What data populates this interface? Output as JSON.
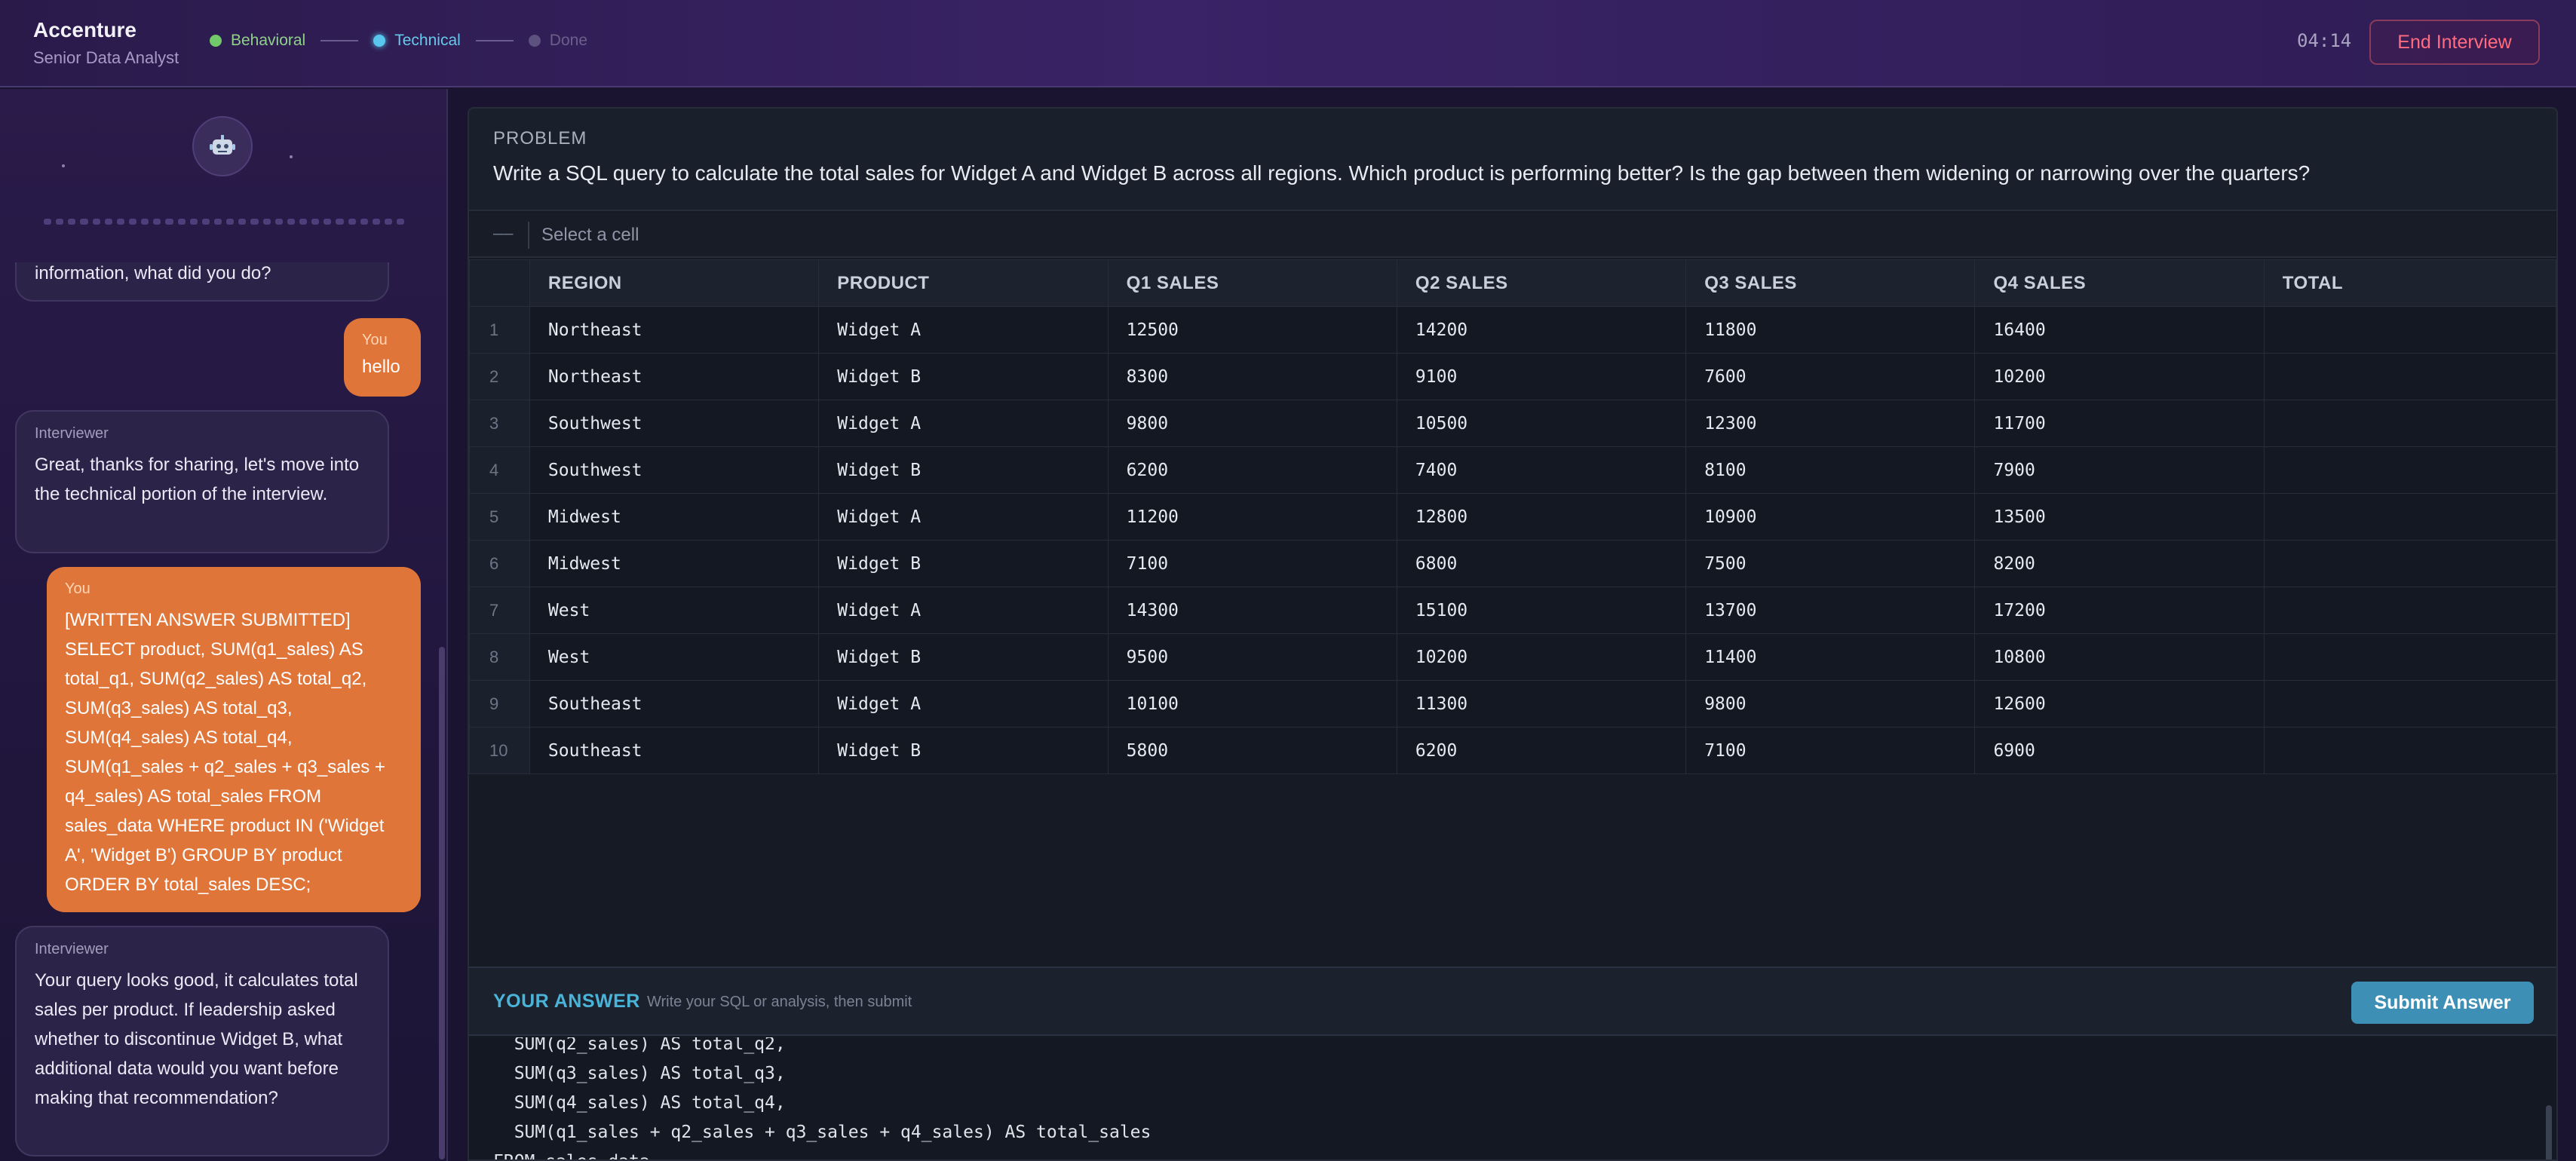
{
  "header": {
    "company": "Accenture",
    "role": "Senior Data Analyst",
    "steps": [
      {
        "label": "Behavioral",
        "state": "complete",
        "color": "#72c96a"
      },
      {
        "label": "Technical",
        "state": "active",
        "color": "#59c6ee"
      },
      {
        "label": "Done",
        "state": "pending",
        "color": "#5d5180"
      }
    ],
    "timer": "04:14",
    "end_button": "End Interview"
  },
  "chat": {
    "avatar_icon": "robot-icon",
    "messages": [
      {
        "who": "",
        "text": "information, what did you do?"
      },
      {
        "who": "You",
        "text": "hello"
      },
      {
        "who": "Interviewer",
        "text": "Great, thanks for sharing, let's move into the technical portion of the interview."
      },
      {
        "who": "You",
        "text": "[WRITTEN ANSWER SUBMITTED] SELECT product, SUM(q1_sales) AS total_q1, SUM(q2_sales) AS total_q2, SUM(q3_sales) AS total_q3, SUM(q4_sales) AS total_q4, SUM(q1_sales + q2_sales + q3_sales + q4_sales) AS total_sales FROM sales_data WHERE product IN ('Widget A', 'Widget B') GROUP BY product ORDER BY total_sales DESC;"
      },
      {
        "who": "Interviewer",
        "text": "Your query looks good, it calculates total sales per product. If leadership asked whether to discontinue Widget B, what additional data would you want before making that recommendation?"
      }
    ]
  },
  "problem": {
    "label": "PROBLEM",
    "text": "Write a SQL query to calculate the total sales for Widget A and Widget B across all regions. Which product is performing better? Is the gap between them widening or narrowing over the quarters?"
  },
  "cellbar": {
    "ref": "––",
    "hint": "Select a cell"
  },
  "table": {
    "columns": [
      "REGION",
      "PRODUCT",
      "Q1 SALES",
      "Q2 SALES",
      "Q3 SALES",
      "Q4 SALES",
      "TOTAL"
    ],
    "rows": [
      {
        "n": "1",
        "cells": [
          "Northeast",
          "Widget A",
          "12500",
          "14200",
          "11800",
          "16400",
          ""
        ]
      },
      {
        "n": "2",
        "cells": [
          "Northeast",
          "Widget B",
          "8300",
          "9100",
          "7600",
          "10200",
          ""
        ]
      },
      {
        "n": "3",
        "cells": [
          "Southwest",
          "Widget A",
          "9800",
          "10500",
          "12300",
          "11700",
          ""
        ]
      },
      {
        "n": "4",
        "cells": [
          "Southwest",
          "Widget B",
          "6200",
          "7400",
          "8100",
          "7900",
          ""
        ]
      },
      {
        "n": "5",
        "cells": [
          "Midwest",
          "Widget A",
          "11200",
          "12800",
          "10900",
          "13500",
          ""
        ]
      },
      {
        "n": "6",
        "cells": [
          "Midwest",
          "Widget B",
          "7100",
          "6800",
          "7500",
          "8200",
          ""
        ]
      },
      {
        "n": "7",
        "cells": [
          "West",
          "Widget A",
          "14300",
          "15100",
          "13700",
          "17200",
          ""
        ]
      },
      {
        "n": "8",
        "cells": [
          "West",
          "Widget B",
          "9500",
          "10200",
          "11400",
          "10800",
          ""
        ]
      },
      {
        "n": "9",
        "cells": [
          "Southeast",
          "Widget A",
          "10100",
          "11300",
          "9800",
          "12600",
          ""
        ]
      },
      {
        "n": "10",
        "cells": [
          "Southeast",
          "Widget B",
          "5800",
          "6200",
          "7100",
          "6900",
          ""
        ]
      }
    ]
  },
  "answer": {
    "label": "YOUR ANSWER",
    "hint": "Write your SQL or analysis, then submit",
    "submit_label": "Submit Answer",
    "code": "  SUM(q2_sales) AS total_q2,\n  SUM(q3_sales) AS total_q3,\n  SUM(q4_sales) AS total_q4,\n  SUM(q1_sales + q2_sales + q3_sales + q4_sales) AS total_sales\nFROM sales_data"
  },
  "colors": {
    "accent_orange": "#e0753a",
    "accent_blue": "#3e8fb5",
    "danger": "#ff6b7f"
  }
}
